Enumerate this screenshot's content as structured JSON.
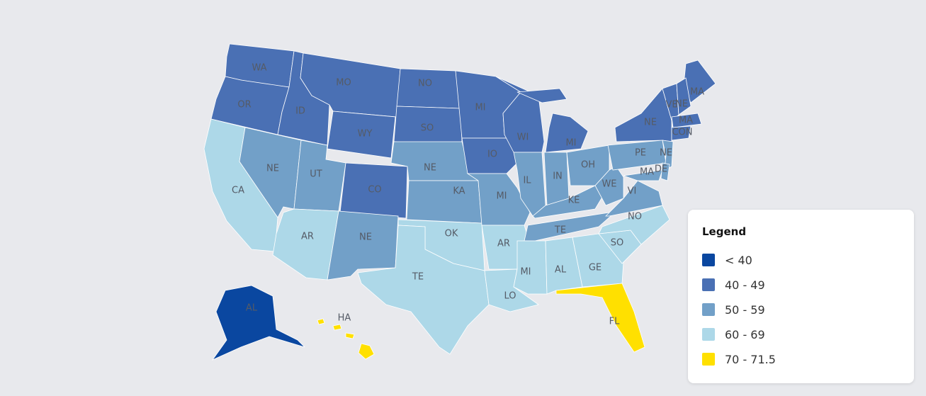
{
  "map": {
    "states": [
      {
        "label": "WA",
        "color": "#4a70b4"
      },
      {
        "label": "OR",
        "color": "#4a70b4"
      },
      {
        "label": "CA",
        "color": "#add8e8"
      },
      {
        "label": "NE",
        "color": "#72a0c8"
      },
      {
        "label": "ID",
        "color": "#4a70b4"
      },
      {
        "label": "MO",
        "color": "#4a70b4"
      },
      {
        "label": "WY",
        "color": "#4a70b4"
      },
      {
        "label": "UT",
        "color": "#72a0c8"
      },
      {
        "label": "AR",
        "color": "#add8e8"
      },
      {
        "label": "CO",
        "color": "#4a70b4"
      },
      {
        "label": "NE",
        "color": "#72a0c8"
      },
      {
        "label": "NO",
        "color": "#4a70b4"
      },
      {
        "label": "SO",
        "color": "#4a70b4"
      },
      {
        "label": "NE",
        "color": "#72a0c8"
      },
      {
        "label": "KA",
        "color": "#72a0c8"
      },
      {
        "label": "OK",
        "color": "#add8e8"
      },
      {
        "label": "TE",
        "color": "#add8e8"
      },
      {
        "label": "MI",
        "color": "#4a70b4"
      },
      {
        "label": "IO",
        "color": "#4a70b4"
      },
      {
        "label": "MI",
        "color": "#72a0c8"
      },
      {
        "label": "AR",
        "color": "#add8e8"
      },
      {
        "label": "LO",
        "color": "#add8e8"
      },
      {
        "label": "WI",
        "color": "#4a70b4"
      },
      {
        "label": "MI",
        "color": "#4a70b4"
      },
      {
        "label": "IL",
        "color": "#72a0c8"
      },
      {
        "label": "IN",
        "color": "#72a0c8"
      },
      {
        "label": "OH",
        "color": "#72a0c8"
      },
      {
        "label": "KE",
        "color": "#72a0c8"
      },
      {
        "label": "TE",
        "color": "#72a0c8"
      },
      {
        "label": "MI",
        "color": "#add8e8"
      },
      {
        "label": "AL",
        "color": "#add8e8"
      },
      {
        "label": "GE",
        "color": "#add8e8"
      },
      {
        "label": "FL",
        "color": "#ffe000"
      },
      {
        "label": "SO",
        "color": "#add8e8"
      },
      {
        "label": "NO",
        "color": "#add8e8"
      },
      {
        "label": "VI",
        "color": "#72a0c8"
      },
      {
        "label": "WE",
        "color": "#72a0c8"
      },
      {
        "label": "PE",
        "color": "#72a0c8"
      },
      {
        "label": "NE",
        "color": "#4a70b4"
      },
      {
        "label": "NE",
        "color": "#72a0c8"
      },
      {
        "label": "MA",
        "color": "#72a0c8"
      },
      {
        "label": "DE",
        "color": "#72a0c8"
      },
      {
        "label": "MA",
        "color": "#4a70b4"
      },
      {
        "label": "VE",
        "color": "#4a70b4"
      },
      {
        "label": "NE",
        "color": "#4a70b4"
      },
      {
        "label": "MA",
        "color": "#4a70b4"
      },
      {
        "label": "CON",
        "color": "#4a70b4"
      },
      {
        "label": "AL",
        "color": "#0a47a0"
      },
      {
        "label": "HA",
        "color": "#ffe000"
      }
    ]
  },
  "legend": {
    "title": "Legend",
    "items": [
      {
        "label": "< 40",
        "color": "#0a47a0"
      },
      {
        "label": "40 - 49",
        "color": "#4a70b4"
      },
      {
        "label": "50 - 59",
        "color": "#72a0c8"
      },
      {
        "label": "60 - 69",
        "color": "#add8e8"
      },
      {
        "label": "70 - 71.5",
        "color": "#ffe000"
      }
    ]
  }
}
